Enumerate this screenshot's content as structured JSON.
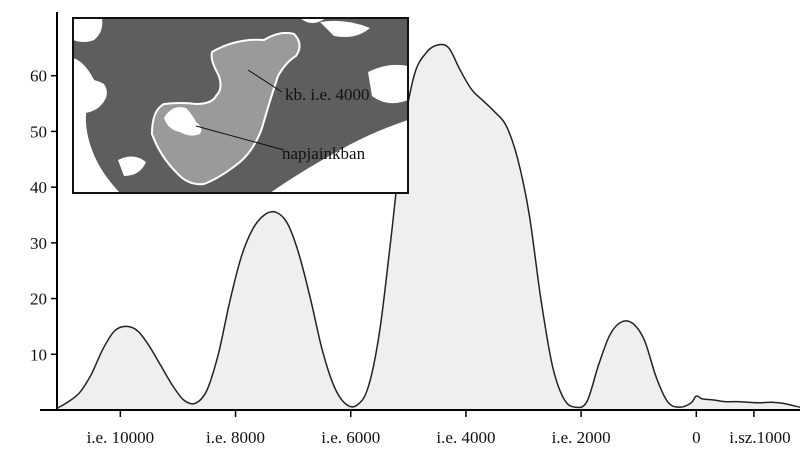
{
  "chart_data": {
    "type": "area",
    "title": "",
    "xlabel": "",
    "ylabel": "",
    "x_tick_labels": [
      {
        "x": -10000,
        "label": "i.e. 10000"
      },
      {
        "x": -8000,
        "label": "i.e. 8000"
      },
      {
        "x": -6000,
        "label": "i.e. 6000"
      },
      {
        "x": -4000,
        "label": "i.e. 4000"
      },
      {
        "x": -2000,
        "label": "i.e. 2000"
      },
      {
        "x": 0,
        "label": "0"
      },
      {
        "x": 1000,
        "label": "i.sz.1000"
      }
    ],
    "y_ticks": [
      10,
      20,
      30,
      40,
      50,
      60
    ],
    "xlim": [
      -11100,
      1800
    ],
    "ylim": [
      0,
      70
    ],
    "grid": false,
    "fill_color": "#efefef",
    "line_color": "#222222",
    "series": [
      {
        "x": [
          -11100,
          -10900,
          -10700,
          -10500,
          -10300,
          -10100,
          -9900,
          -9700,
          -9500,
          -9300,
          -9100,
          -8900,
          -8700,
          -8500,
          -8300,
          -8100,
          -7900,
          -7700,
          -7500,
          -7300,
          -7100,
          -6900,
          -6700,
          -6500,
          -6300,
          -6100,
          -5900,
          -5700,
          -5500,
          -5300,
          -5100,
          -4900,
          -4700,
          -4500,
          -4300,
          -4100,
          -3900,
          -3700,
          -3500,
          -3300,
          -3100,
          -2900,
          -2700,
          -2500,
          -2300,
          -2100,
          -1900,
          -1700,
          -1500,
          -1300,
          -1100,
          -900,
          -700,
          -500,
          -300,
          -100,
          0,
          100,
          300,
          500,
          700,
          900,
          1100,
          1300,
          1500,
          1800
        ],
        "y": [
          0.3,
          1.5,
          3.2,
          6.5,
          11.0,
          14.2,
          15.0,
          14.2,
          11.5,
          8.0,
          4.5,
          1.8,
          1.2,
          3.5,
          10.0,
          19.5,
          27.5,
          32.5,
          35.0,
          35.5,
          33.5,
          28.0,
          20.0,
          11.0,
          4.5,
          1.2,
          0.8,
          4.0,
          14.0,
          31.0,
          49.0,
          60.0,
          64.0,
          65.5,
          65.0,
          61.0,
          57.5,
          55.5,
          53.5,
          51.0,
          45.0,
          35.0,
          20.0,
          8.0,
          2.0,
          0.5,
          1.5,
          8.0,
          13.5,
          15.8,
          15.5,
          12.5,
          6.0,
          1.5,
          0.5,
          1.2,
          2.5,
          2.0,
          1.8,
          1.5,
          1.5,
          1.4,
          1.3,
          1.4,
          1.2,
          0.5
        ]
      }
    ]
  },
  "inset": {
    "labels": {
      "kb_label": "kb. i.e. 4000",
      "now_label": "napjainkban"
    },
    "colors": {
      "border": "#111111",
      "land": "#ffffff",
      "water_dark": "#5e5e5e",
      "lake_ancient": "#9a9a9a",
      "lake_modern": "#ffffff"
    }
  }
}
